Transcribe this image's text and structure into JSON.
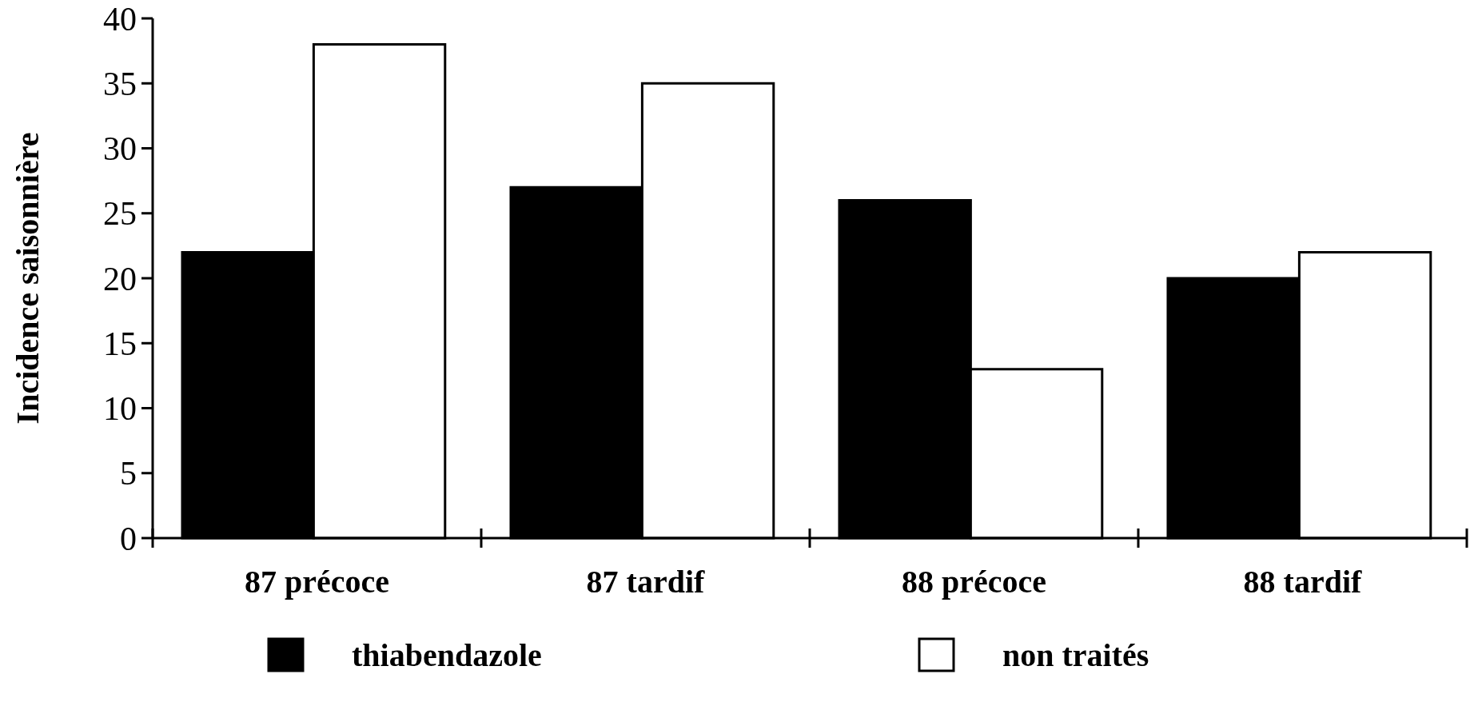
{
  "chart_data": {
    "type": "bar",
    "ylabel": "Incidence saisonnière",
    "categories": [
      "87 précoce",
      "87 tardif",
      "88 précoce",
      "88 tardif"
    ],
    "series": [
      {
        "name": "thiabendazole",
        "color": "#000000",
        "values": [
          22,
          27,
          26,
          20
        ]
      },
      {
        "name": "non traités",
        "color": "#ffffff",
        "values": [
          38,
          35,
          13,
          22
        ]
      }
    ],
    "ylim": [
      0,
      40
    ],
    "yticks": [
      0,
      5,
      10,
      15,
      20,
      25,
      30,
      35,
      40
    ],
    "grid": false,
    "legend": "bottom"
  }
}
